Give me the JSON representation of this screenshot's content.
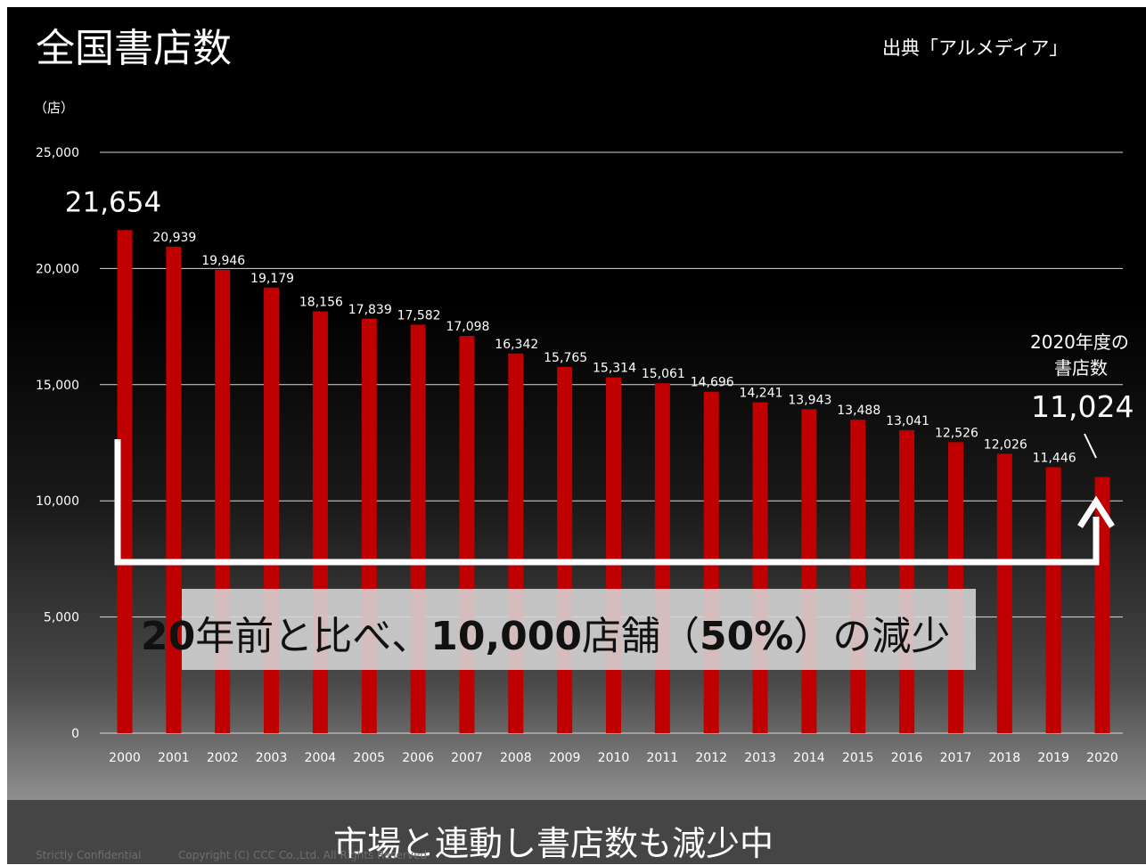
{
  "slide": {
    "title": "全国書店数",
    "source": "出典「アルメディア」",
    "unit_label": "（店）",
    "annotation": {
      "line1": "2020年度の",
      "line2": "書店数",
      "value": "11,024"
    },
    "headline": {
      "part1": "20",
      "part2": "年前と比べ、",
      "part3": "10,000",
      "part4": "店舗（",
      "part5": "50%",
      "part6": "）の減少"
    },
    "footer_message": "市場と連動し書店数も減少中",
    "confidential": "Strictly Confidential",
    "copyright": "Copyright (C) CCC Co.,Ltd. All Rights Reserved"
  },
  "colors": {
    "bar": "#c00000",
    "gridline": "#d9d9d9",
    "arrow": "#ffffff",
    "text": "#ffffff"
  },
  "chart_data": {
    "type": "bar",
    "title": "全国書店数",
    "xlabel": "",
    "ylabel": "（店）",
    "ylim": [
      0,
      25000
    ],
    "yticks": [
      0,
      5000,
      10000,
      15000,
      20000,
      25000
    ],
    "ytick_labels": [
      "0",
      "5,000",
      "10,000",
      "15,000",
      "20,000",
      "25,000"
    ],
    "grid": true,
    "categories": [
      "2000",
      "2001",
      "2002",
      "2003",
      "2004",
      "2005",
      "2006",
      "2007",
      "2008",
      "2009",
      "2010",
      "2011",
      "2012",
      "2013",
      "2014",
      "2015",
      "2016",
      "2017",
      "2018",
      "2019",
      "2020"
    ],
    "values": [
      21654,
      20939,
      19946,
      19179,
      18156,
      17839,
      17582,
      17098,
      16342,
      15765,
      15314,
      15061,
      14696,
      14241,
      13943,
      13488,
      13041,
      12526,
      12026,
      11446,
      11024
    ],
    "value_labels": [
      "21,654",
      "20,939",
      "19,946",
      "19,179",
      "18,156",
      "17,839",
      "17,582",
      "17,098",
      "16,342",
      "15,765",
      "15,314",
      "15,061",
      "14,696",
      "14,241",
      "13,943",
      "13,488",
      "13,041",
      "12,526",
      "12,026",
      "11,446",
      ""
    ]
  }
}
